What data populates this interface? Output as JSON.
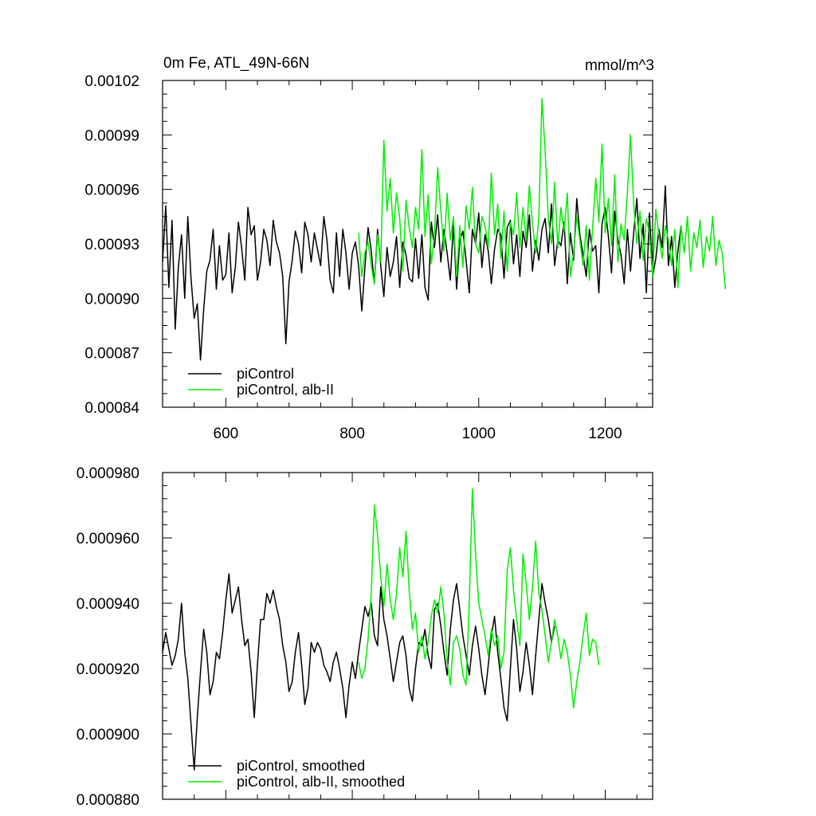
{
  "chart_data": [
    {
      "type": "line",
      "title": "0m Fe, ATL_49N-66N",
      "units": "mmol/m^3",
      "xlim": [
        500,
        1275
      ],
      "ylim": [
        0.00084,
        0.00102
      ],
      "x_ticks": [
        "600",
        "800",
        "1000",
        "1200"
      ],
      "y_ticks": [
        "0.00084",
        "0.00087",
        "0.00090",
        "0.00093",
        "0.00096",
        "0.00099",
        "0.00102"
      ],
      "grid": false,
      "legend": "bottom-left",
      "series": [
        {
          "name": "piControl",
          "color": "#000000",
          "x_start": 500,
          "x_step": 5,
          "values": [
            0.00092,
            0.000951,
            0.000906,
            0.000943,
            0.000883,
            0.000917,
            0.000935,
            0.0009,
            0.000945,
            0.000911,
            0.000889,
            0.000897,
            0.000866,
            0.000894,
            0.000915,
            0.000921,
            0.000938,
            0.000905,
            0.000929,
            0.00091,
            0.000913,
            0.000936,
            0.000903,
            0.000917,
            0.000942,
            0.000928,
            0.00091,
            0.00095,
            0.000935,
            0.00094,
            0.00091,
            0.00092,
            0.000938,
            0.000932,
            0.000918,
            0.000943,
            0.000931,
            0.000925,
            0.000912,
            0.000875,
            0.000909,
            0.000921,
            0.000937,
            0.00093,
            0.000914,
            0.000942,
            0.000935,
            0.00092,
            0.000936,
            0.000927,
            0.000918,
            0.000945,
            0.000932,
            0.00091,
            0.000903,
            0.000936,
            0.000912,
            0.000938,
            0.000925,
            0.000905,
            0.000925,
            0.000931,
            0.000918,
            0.000893,
            0.000917,
            0.000939,
            0.000926,
            0.000908,
            0.000938,
            0.000918,
            0.000901,
            0.000928,
            0.000912,
            0.00092,
            0.000934,
            0.000906,
            0.000931,
            0.000924,
            0.000911,
            0.000909,
            0.000933,
            0.000911,
            0.000935,
            0.000906,
            0.000899,
            0.000942,
            0.000928,
            0.000946,
            0.00092,
            0.000938,
            0.000925,
            0.00091,
            0.000941,
            0.000905,
            0.000932,
            0.000937,
            0.000921,
            0.000903,
            0.000938,
            0.00093,
            0.000947,
            0.000917,
            0.000935,
            0.000926,
            0.000908,
            0.000927,
            0.000938,
            0.000935,
            0.000911,
            0.000939,
            0.000943,
            0.000919,
            0.000935,
            0.000912,
            0.000937,
            0.000928,
            0.000946,
            0.000915,
            0.000932,
            0.000921,
            0.000938,
            0.000944,
            0.000925,
            0.000952,
            0.000918,
            0.000932,
            0.000929,
            0.000942,
            0.000908,
            0.000936,
            0.000921,
            0.000955,
            0.000935,
            0.000924,
            0.000912,
            0.000938,
            0.000926,
            0.000929,
            0.000903,
            0.000941,
            0.00095,
            0.000934,
            0.000914,
            0.000948,
            0.000932,
            0.000924,
            0.000908,
            0.000938,
            0.000915,
            0.000936,
            0.000955,
            0.000922,
            0.000941,
            0.000903,
            0.000947,
            0.000912,
            0.000922,
            0.000938,
            0.000928,
            0.000962,
            0.000918,
            0.000934,
            0.000906,
            0.000926,
            0.00094
          ]
        },
        {
          "name": "piControl, alb-II",
          "color": "#00ee00",
          "x_start": 810,
          "x_step": 5,
          "values": [
            0.000936,
            0.000912,
            0.000925,
            0.000931,
            0.000918,
            0.000908,
            0.000935,
            0.00092,
            0.000987,
            0.000948,
            0.000966,
            0.000936,
            0.000958,
            0.000944,
            0.000915,
            0.000954,
            0.000939,
            0.000928,
            0.00095,
            0.000938,
            0.000982,
            0.000934,
            0.000957,
            0.000919,
            0.000935,
            0.000972,
            0.000948,
            0.000926,
            0.000958,
            0.000932,
            0.000945,
            0.000912,
            0.00094,
            0.000917,
            0.000951,
            0.000938,
            0.000961,
            0.00093,
            0.000925,
            0.000945,
            0.00094,
            0.000928,
            0.000969,
            0.000935,
            0.000952,
            0.000922,
            0.000948,
            0.000915,
            0.000942,
            0.000935,
            0.000958,
            0.000928,
            0.00095,
            0.000932,
            0.000962,
            0.000941,
            0.000925,
            0.000945,
            0.00101,
            0.000981,
            0.000944,
            0.00093,
            0.000964,
            0.000928,
            0.00095,
            0.000937,
            0.000958,
            0.000912,
            0.000925,
            0.000945,
            0.000932,
            0.000918,
            0.00094,
            0.00091,
            0.000938,
            0.000966,
            0.000942,
            0.000985,
            0.000936,
            0.000955,
            0.000929,
            0.000968,
            0.00092,
            0.000941,
            0.000932,
            0.000958,
            0.00099,
            0.000952,
            0.00093,
            0.000948,
            0.000921,
            0.000944,
            0.000936,
            0.000912,
            0.000949,
            0.000935,
            0.000922,
            0.00094,
            0.000932,
            0.000918,
            0.000938,
            0.000906,
            0.00094,
            0.000925,
            0.000945,
            0.000915,
            0.000936,
            0.000928,
            0.000943,
            0.000917,
            0.000934,
            0.000926,
            0.000945,
            0.000918,
            0.000932,
            0.000925,
            0.000905
          ]
        }
      ]
    },
    {
      "type": "line",
      "xlim": [
        500,
        1275
      ],
      "ylim": [
        0.00088,
        0.00098
      ],
      "y_ticks": [
        "0.000880",
        "0.000900",
        "0.000920",
        "0.000940",
        "0.000960",
        "0.000980"
      ],
      "grid": false,
      "legend": "bottom-left",
      "series": [
        {
          "name": "piControl, smoothed",
          "color": "#000000",
          "x_start": 500,
          "x_step": 5,
          "values": [
            0.000925,
            0.000931,
            0.000926,
            0.000921,
            0.000924,
            0.000929,
            0.00094,
            0.000925,
            0.000917,
            0.000903,
            0.000889,
            0.000905,
            0.000919,
            0.000932,
            0.000925,
            0.000912,
            0.000916,
            0.000925,
            0.000923,
            0.000931,
            0.000941,
            0.000949,
            0.000937,
            0.000941,
            0.000945,
            0.000935,
            0.000927,
            0.000929,
            0.000919,
            0.000905,
            0.000921,
            0.000935,
            0.000935,
            0.000943,
            0.00094,
            0.000944,
            0.000939,
            0.000935,
            0.000927,
            0.000922,
            0.000913,
            0.000916,
            0.000925,
            0.000931,
            0.000921,
            0.000909,
            0.000914,
            0.000928,
            0.000925,
            0.000928,
            0.000926,
            0.000921,
            0.000919,
            0.000916,
            0.000922,
            0.000925,
            0.00092,
            0.000914,
            0.000905,
            0.000915,
            0.000922,
            0.000917,
            0.000925,
            0.000932,
            0.000939,
            0.000936,
            0.00094,
            0.00093,
            0.000927,
            0.000945,
            0.000935,
            0.00093,
            0.000923,
            0.000916,
            0.000922,
            0.000928,
            0.00093,
            0.000924,
            0.000914,
            0.00091,
            0.00092,
            0.000928,
            0.000927,
            0.000932,
            0.000924,
            0.00092,
            0.000938,
            0.00094,
            0.000933,
            0.000925,
            0.000918,
            0.000932,
            0.000941,
            0.000946,
            0.000938,
            0.00093,
            0.000924,
            0.000918,
            0.000927,
            0.000933,
            0.000926,
            0.000918,
            0.000912,
            0.000921,
            0.00093,
            0.000936,
            0.000925,
            0.000917,
            0.000908,
            0.000904,
            0.00092,
            0.000935,
            0.000926,
            0.000913,
            0.000919,
            0.000928,
            0.000921,
            0.000912,
            0.000924,
            0.000935,
            0.000946,
            0.00094,
            0.000935,
            0.000928,
            0.000933
          ]
        },
        {
          "name": "piControl, alb-II, smoothed",
          "color": "#00ee00",
          "x_start": 810,
          "x_step": 5,
          "values": [
            0.000922,
            0.000917,
            0.00092,
            0.000929,
            0.000943,
            0.00097,
            0.000961,
            0.000948,
            0.000939,
            0.000952,
            0.000941,
            0.000935,
            0.000943,
            0.000957,
            0.000948,
            0.000962,
            0.000944,
            0.000932,
            0.000937,
            0.000925,
            0.00093,
            0.000923,
            0.000928,
            0.000936,
            0.000941,
            0.000937,
            0.000945,
            0.000937,
            0.000922,
            0.000915,
            0.000928,
            0.00093,
            0.000926,
            0.000918,
            0.000915,
            0.00094,
            0.000975,
            0.000955,
            0.00094,
            0.000935,
            0.00093,
            0.000924,
            0.000932,
            0.000927,
            0.00093,
            0.00092,
            0.000925,
            0.00095,
            0.000957,
            0.000944,
            0.000935,
            0.000927,
            0.000955,
            0.000946,
            0.000935,
            0.000945,
            0.000959,
            0.000943,
            0.000938,
            0.00093,
            0.000922,
            0.000928,
            0.000935,
            0.00093,
            0.000923,
            0.000929,
            0.000925,
            0.000918,
            0.000908,
            0.000916,
            0.000922,
            0.00093,
            0.000937,
            0.000924,
            0.000929,
            0.000928,
            0.000921
          ]
        }
      ]
    }
  ]
}
